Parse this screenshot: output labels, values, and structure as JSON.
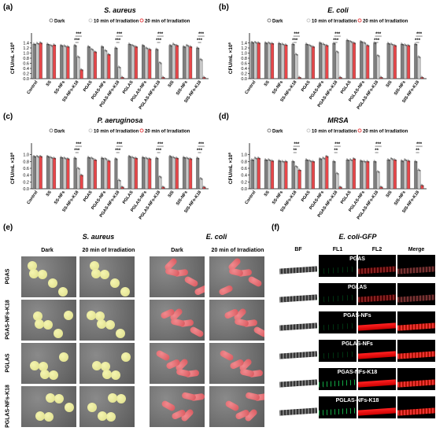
{
  "legend": {
    "dark": "Dark",
    "ten": "10 min of Irradiation",
    "twenty": "20 min of Irradiation"
  },
  "ylabel": "CFU/mL ×10",
  "ylabel_sup": "6",
  "yticks": [
    "0.0",
    "0.2",
    "0.4",
    "0.6",
    "0.8",
    "1.0",
    "1.2",
    "1.4"
  ],
  "categories": [
    "Control",
    "SS",
    "SS-NFs",
    "SS-NFs-K18",
    "PGAS",
    "PGAS-NFs",
    "PGAS-NFs-K18",
    "PGLAS",
    "PGLAS-NFs",
    "PGLAS-NFs-K18",
    "SIS",
    "SIS-NFs",
    "SIS-NFs-K18"
  ],
  "panel_letters": [
    "(a)",
    "(b)",
    "(c)",
    "(d)",
    "(e)",
    "(f)"
  ],
  "chart_data": [
    {
      "type": "bar",
      "title": "S. aureus",
      "ylim": [
        0,
        1.6
      ],
      "series": [
        {
          "name": "Dark",
          "values": [
            1.35,
            1.35,
            1.3,
            1.3,
            1.25,
            1.25,
            1.2,
            1.35,
            1.3,
            1.15,
            1.3,
            1.25,
            1.2
          ]
        },
        {
          "name": "10 min of Irradiation",
          "values": [
            1.38,
            1.3,
            1.28,
            0.85,
            1.15,
            1.1,
            0.45,
            1.3,
            1.2,
            0.62,
            1.35,
            1.3,
            0.75
          ]
        },
        {
          "name": "20 min of Irradiation",
          "values": [
            1.4,
            1.32,
            1.25,
            0.35,
            1.05,
            0.95,
            0.05,
            1.25,
            1.15,
            0.05,
            1.3,
            1.25,
            0.05
          ]
        }
      ],
      "sig": [
        "***",
        "***"
      ]
    },
    {
      "type": "bar",
      "title": "E. coli",
      "ylim": [
        0,
        1.6
      ],
      "series": [
        {
          "name": "Dark",
          "values": [
            1.42,
            1.4,
            1.38,
            1.35,
            1.35,
            1.4,
            1.38,
            1.5,
            1.45,
            1.4,
            1.38,
            1.35,
            1.35
          ]
        },
        {
          "name": "10 min of Irradiation",
          "values": [
            1.42,
            1.4,
            1.35,
            0.95,
            1.3,
            1.35,
            1.05,
            1.45,
            1.4,
            0.9,
            1.35,
            1.32,
            0.85
          ]
        },
        {
          "name": "20 min of Irradiation",
          "values": [
            1.4,
            1.38,
            1.32,
            0.05,
            1.25,
            1.3,
            0.05,
            1.4,
            1.3,
            0.05,
            1.3,
            1.3,
            0.05
          ]
        }
      ],
      "sig": [
        "***",
        "***"
      ]
    },
    {
      "type": "bar",
      "title": "P. aeruginosa",
      "ylim": [
        0,
        1.2
      ],
      "series": [
        {
          "name": "Dark",
          "values": [
            0.95,
            0.95,
            0.92,
            0.9,
            0.92,
            0.9,
            0.88,
            0.95,
            0.92,
            0.9,
            0.95,
            0.92,
            0.9
          ]
        },
        {
          "name": "10 min of Irradiation",
          "values": [
            0.95,
            0.92,
            0.9,
            0.6,
            0.9,
            0.88,
            0.25,
            0.92,
            0.9,
            0.35,
            0.92,
            0.9,
            0.3
          ]
        },
        {
          "name": "20 min of Irradiation",
          "values": [
            0.95,
            0.9,
            0.88,
            0.4,
            0.85,
            0.82,
            0.05,
            0.9,
            0.88,
            0.05,
            0.9,
            0.88,
            0.05
          ]
        }
      ],
      "sig": [
        "***",
        "***"
      ]
    },
    {
      "type": "bar",
      "title": "MRSA",
      "ylim": [
        0,
        1.2
      ],
      "series": [
        {
          "name": "Dark",
          "values": [
            0.85,
            0.85,
            0.82,
            0.8,
            0.85,
            0.88,
            0.8,
            0.85,
            0.82,
            0.8,
            0.85,
            0.82,
            0.8
          ]
        },
        {
          "name": "10 min of Irradiation",
          "values": [
            0.9,
            0.85,
            0.8,
            0.65,
            0.82,
            0.9,
            0.45,
            0.85,
            0.8,
            0.5,
            0.88,
            0.85,
            0.55
          ]
        },
        {
          "name": "20 min of Irradiation",
          "values": [
            0.9,
            0.82,
            0.8,
            0.55,
            0.8,
            0.95,
            0.05,
            0.88,
            0.8,
            0.05,
            0.85,
            0.82,
            0.1
          ]
        }
      ],
      "sig": [
        "***",
        "**",
        "***"
      ]
    }
  ],
  "sem": {
    "s_aureus": "S. aureus",
    "e_coli": "E. coli",
    "dark": "Dark",
    "irr": "20 min of Irradiation",
    "rows": [
      "PGAS",
      "PGAS-NFs-K18",
      "PGLAS",
      "PGLAS-NFs-K18"
    ]
  },
  "fluor": {
    "title": "E. coli-GFP",
    "cols": [
      "BF",
      "FL1",
      "FL2",
      "Merge"
    ],
    "rows": [
      "PGAS",
      "PGLAS",
      "PGAS-NFs",
      "PGLAS-NFs",
      "PGAS-NFs-K18",
      "PGLAS-NFs-K18"
    ]
  },
  "colors": {
    "dark": "#7f7f7f",
    "ten": "#c8c8c8",
    "twenty": "#e8474a"
  }
}
